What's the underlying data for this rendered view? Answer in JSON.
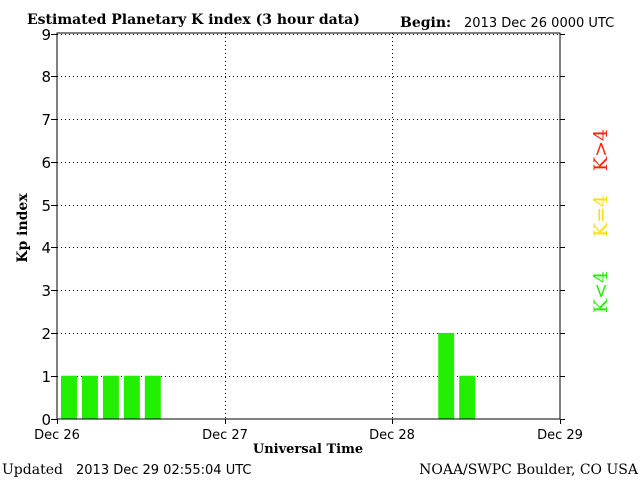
{
  "header": {
    "title": "Estimated Planetary K index (3 hour data)",
    "begin_label": "Begin:",
    "begin_value": "2013 Dec 26 0000 UTC"
  },
  "footer": {
    "updated_label": "Updated",
    "updated_value": "2013 Dec 29 02:55:04 UTC",
    "credit": "NOAA/SWPC Boulder, CO USA"
  },
  "legend": {
    "items": [
      {
        "label": "K>4",
        "color": "#ff2200"
      },
      {
        "label": "K=4",
        "color": "#ffdd00"
      },
      {
        "label": "K<4",
        "color": "#22ee00"
      }
    ]
  },
  "chart_data": {
    "type": "bar",
    "title": "Estimated Planetary K index (3 hour data)",
    "xlabel": "Universal Time",
    "ylabel": "Kp index",
    "ylim": [
      0,
      9
    ],
    "y_ticks": [
      0,
      1,
      2,
      3,
      4,
      5,
      6,
      7,
      8,
      9
    ],
    "x_ticks": [
      "Dec 26",
      "Dec 27",
      "Dec 28",
      "Dec 29"
    ],
    "interval_hours": 3,
    "grid": true,
    "bar_color": "#22ee00",
    "values": [
      1,
      1,
      1,
      1,
      1,
      null,
      null,
      null,
      null,
      null,
      null,
      null,
      null,
      null,
      null,
      null,
      null,
      null,
      2,
      1,
      null,
      null,
      null,
      null
    ]
  }
}
